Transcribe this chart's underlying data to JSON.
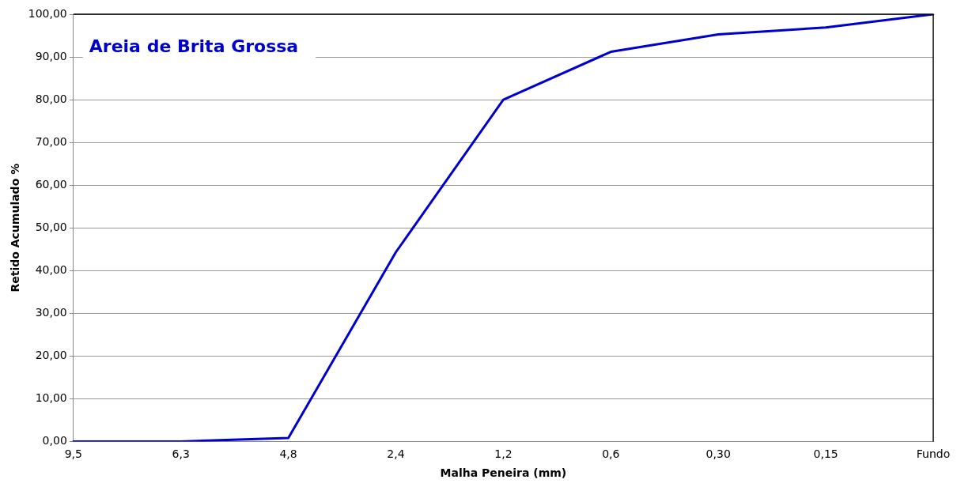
{
  "chart_data": {
    "type": "line",
    "title": "Areia de Brita Grossa",
    "xlabel": "Malha Peneira (mm)",
    "ylabel": "Retido Acumulado %",
    "categories": [
      "9,5",
      "6,3",
      "4,8",
      "2,4",
      "1,2",
      "0,6",
      "0,30",
      "0,15",
      "Fundo"
    ],
    "series": [
      {
        "color": "#0000cc",
        "values": [
          0,
          0,
          0.8,
          44.3,
          80.0,
          91.2,
          95.3,
          96.9,
          100
        ]
      }
    ],
    "ylim": [
      0,
      100
    ],
    "yticks": [
      {
        "value": 0,
        "label": "0,00"
      },
      {
        "value": 10,
        "label": "10,00"
      },
      {
        "value": 20,
        "label": "20,00"
      },
      {
        "value": 30,
        "label": "30,00"
      },
      {
        "value": 40,
        "label": "40,00"
      },
      {
        "value": 50,
        "label": "50,00"
      },
      {
        "value": 60,
        "label": "60,00"
      },
      {
        "value": 70,
        "label": "70,00"
      },
      {
        "value": 80,
        "label": "80,00"
      },
      {
        "value": 90,
        "label": "90,00"
      },
      {
        "value": 100,
        "label": "100,00"
      }
    ],
    "grid": "y",
    "legend": false,
    "marker": "none",
    "line_style": "solid"
  }
}
